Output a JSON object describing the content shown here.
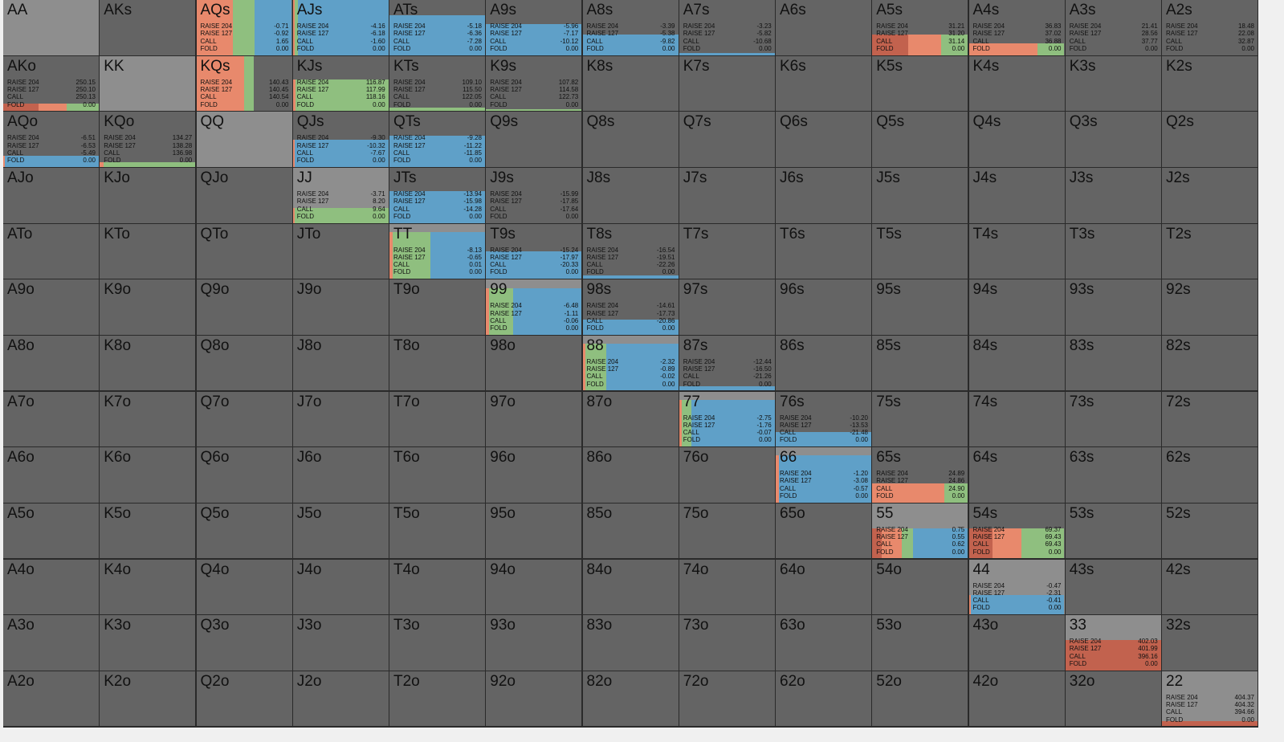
{
  "grid": {
    "labels": [
      [
        "AA",
        "AKs",
        "AQs",
        "AJs",
        "ATs",
        "A9s",
        "A8s",
        "A7s",
        "A6s",
        "A5s",
        "A4s",
        "A3s",
        "A2s"
      ],
      [
        "AKo",
        "KK",
        "KQs",
        "KJs",
        "KTs",
        "K9s",
        "K8s",
        "K7s",
        "K6s",
        "K5s",
        "K4s",
        "K3s",
        "K2s"
      ],
      [
        "AQo",
        "KQo",
        "QQ",
        "QJs",
        "QTs",
        "Q9s",
        "Q8s",
        "Q7s",
        "Q6s",
        "Q5s",
        "Q4s",
        "Q3s",
        "Q2s"
      ],
      [
        "AJo",
        "KJo",
        "QJo",
        "JJ",
        "JTs",
        "J9s",
        "J8s",
        "J7s",
        "J6s",
        "J5s",
        "J4s",
        "J3s",
        "J2s"
      ],
      [
        "ATo",
        "KTo",
        "QTo",
        "JTo",
        "TT",
        "T9s",
        "T8s",
        "T7s",
        "T6s",
        "T5s",
        "T4s",
        "T3s",
        "T2s"
      ],
      [
        "A9o",
        "K9o",
        "Q9o",
        "J9o",
        "T9o",
        "99",
        "98s",
        "97s",
        "96s",
        "95s",
        "94s",
        "93s",
        "92s"
      ],
      [
        "A8o",
        "K8o",
        "Q8o",
        "J8o",
        "T8o",
        "98o",
        "88",
        "87s",
        "86s",
        "85s",
        "84s",
        "83s",
        "82s"
      ],
      [
        "A7o",
        "K7o",
        "Q7o",
        "J7o",
        "T7o",
        "97o",
        "87o",
        "77",
        "76s",
        "75s",
        "74s",
        "73s",
        "72s"
      ],
      [
        "A6o",
        "K6o",
        "Q6o",
        "J6o",
        "T6o",
        "96o",
        "86o",
        "76o",
        "66",
        "65s",
        "64s",
        "63s",
        "62s"
      ],
      [
        "A5o",
        "K5o",
        "Q5o",
        "J5o",
        "T5o",
        "95o",
        "85o",
        "75o",
        "65o",
        "55",
        "54s",
        "53s",
        "52s"
      ],
      [
        "A4o",
        "K4o",
        "Q4o",
        "J4o",
        "T4o",
        "94o",
        "84o",
        "74o",
        "64o",
        "54o",
        "44",
        "43s",
        "42s"
      ],
      [
        "A3o",
        "K3o",
        "Q3o",
        "J3o",
        "T3o",
        "93o",
        "83o",
        "73o",
        "63o",
        "53o",
        "43o",
        "33",
        "32s"
      ],
      [
        "A2o",
        "K2o",
        "Q2o",
        "J2o",
        "T2o",
        "92o",
        "82o",
        "72o",
        "62o",
        "52o",
        "42o",
        "32o",
        "22"
      ]
    ],
    "actions": [
      "RAISE 204",
      "RAISE 127",
      "CALL",
      "FOLD"
    ],
    "colors": [
      "#c2624e",
      "#e8896c",
      "#8fbf7f",
      "#5fa0c8"
    ],
    "details": {
      "AQs": {
        "values": [
          "-0.71",
          "-0.92",
          "1.65",
          "0.00"
        ],
        "mix": [
          0,
          38,
          23,
          39
        ],
        "weight": 100
      },
      "AJs": {
        "values": [
          "-4.16",
          "-6.18",
          "-1.60",
          "0.00"
        ],
        "mix": [
          0,
          2,
          3,
          95
        ],
        "weight": 100
      },
      "ATs": {
        "values": [
          "-5.18",
          "-6.36",
          "-7.28",
          "0.00"
        ],
        "mix": [
          0,
          0,
          0,
          100
        ],
        "weight": 72
      },
      "A9s": {
        "values": [
          "-5.96",
          "-7.17",
          "-10.12",
          "0.00"
        ],
        "mix": [
          0,
          0,
          0,
          100
        ],
        "weight": 57
      },
      "A8s": {
        "values": [
          "-3.39",
          "-5.38",
          "-9.82",
          "0.00"
        ],
        "mix": [
          0,
          0,
          0,
          100
        ],
        "weight": 38
      },
      "A7s": {
        "values": [
          "-3.23",
          "-5.82",
          "-10.68",
          "0.00"
        ],
        "mix": [
          0,
          0,
          0,
          100
        ],
        "weight": 4
      },
      "A5s": {
        "values": [
          "31.21",
          "31.20",
          "31.14",
          "0.00"
        ],
        "mix": [
          38,
          34,
          28,
          0
        ],
        "weight": 38
      },
      "A4s": {
        "values": [
          "36.83",
          "37.02",
          "36.88",
          "0.00"
        ],
        "mix": [
          0,
          72,
          28,
          0
        ],
        "weight": 22
      },
      "A3s": {
        "values": [
          "21.41",
          "28.56",
          "37.77",
          "0.00"
        ]
      },
      "A2s": {
        "values": [
          "18.48",
          "22.08",
          "32.87",
          "0.00"
        ]
      },
      "AKo": {
        "values": [
          "250.15",
          "250.10",
          "250.13",
          "0.00"
        ],
        "mix": [
          37,
          29,
          34,
          0
        ],
        "weight": 14
      },
      "KQs": {
        "values": [
          "140.43",
          "140.45",
          "140.54",
          "0.00"
        ],
        "mix": [
          0,
          50,
          10,
          0
        ],
        "weight": 100
      },
      "KJs": {
        "values": [
          "116.87",
          "117.99",
          "118.16",
          "0.00"
        ],
        "mix": [
          0,
          3,
          97,
          0
        ],
        "weight": 57
      },
      "KTs": {
        "values": [
          "109.10",
          "115.50",
          "122.05",
          "0.00"
        ],
        "mix": [
          0,
          0,
          100,
          0
        ],
        "weight": 6
      },
      "K9s": {
        "values": [
          "107.82",
          "114.58",
          "122.73",
          "0.00"
        ],
        "mix": [
          0,
          0,
          100,
          0
        ],
        "weight": 3
      },
      "AQo": {
        "values": [
          "-6.51",
          "-6.53",
          "-5.49",
          "0.00"
        ],
        "mix": [
          0,
          2,
          0,
          98
        ],
        "weight": 20
      },
      "KQo": {
        "values": [
          "134.27",
          "138.28",
          "136.98",
          "0.00"
        ],
        "mix": [
          0,
          4,
          96,
          0
        ],
        "weight": 8
      },
      "QJs": {
        "values": [
          "-9.30",
          "-10.32",
          "-7.67",
          "0.00"
        ],
        "mix": [
          0,
          2,
          0,
          98
        ],
        "weight": 50
      },
      "QTs": {
        "values": [
          "-9.28",
          "-11.22",
          "-11.85",
          "0.00"
        ],
        "mix": [
          0,
          0,
          0,
          100
        ],
        "weight": 57
      },
      "JJ": {
        "values": [
          "-3.71",
          "8.20",
          "9.64",
          "0.00"
        ],
        "mix": [
          0,
          2,
          98,
          0
        ],
        "weight": 27
      },
      "JTs": {
        "values": [
          "-13.94",
          "-15.98",
          "-14.28",
          "0.00"
        ],
        "mix": [
          0,
          0,
          0,
          100
        ],
        "weight": 57
      },
      "J9s": {
        "values": [
          "-15.99",
          "-17.85",
          "-17.64",
          "0.00"
        ]
      },
      "TT": {
        "values": [
          "-8.13",
          "-0.65",
          "0.01",
          "0.00"
        ],
        "mix": [
          0,
          3,
          40,
          57
        ],
        "weight": 85
      },
      "T9s": {
        "values": [
          "-15.24",
          "-17.97",
          "-20.33",
          "0.00"
        ],
        "mix": [
          0,
          0,
          0,
          100
        ],
        "weight": 50
      },
      "T8s": {
        "values": [
          "-16.54",
          "-19.51",
          "-22.26",
          "0.00"
        ],
        "mix": [
          0,
          0,
          0,
          100
        ],
        "weight": 6
      },
      "99": {
        "values": [
          "-6.48",
          "-1.11",
          "-0.06",
          "0.00"
        ],
        "mix": [
          0,
          3,
          25,
          72
        ],
        "weight": 85
      },
      "98s": {
        "values": [
          "-14.61",
          "-17.73",
          "-20.86",
          "0.00"
        ],
        "mix": [
          0,
          0,
          0,
          100
        ],
        "weight": 27
      },
      "88": {
        "values": [
          "-2.32",
          "-0.89",
          "-0.02",
          "0.00"
        ],
        "mix": [
          0,
          3,
          22,
          75
        ],
        "weight": 85
      },
      "87s": {
        "values": [
          "-12.44",
          "-16.50",
          "-21.26",
          "0.00"
        ],
        "mix": [
          0,
          0,
          0,
          100
        ],
        "weight": 8
      },
      "77": {
        "values": [
          "-2.75",
          "-1.76",
          "-0.07",
          "0.00"
        ],
        "mix": [
          0,
          3,
          10,
          87
        ],
        "weight": 85
      },
      "76s": {
        "values": [
          "-10.20",
          "-13.53",
          "-21.48",
          "0.00"
        ],
        "mix": [
          0,
          0,
          0,
          100
        ],
        "weight": 27
      },
      "66": {
        "values": [
          "-1.20",
          "-3.08",
          "-0.57",
          "0.00"
        ],
        "mix": [
          0,
          3,
          0,
          97
        ],
        "weight": 85
      },
      "65s": {
        "values": [
          "24.89",
          "24.86",
          "24.90",
          "0.00"
        ],
        "mix": [
          0,
          75,
          25,
          0
        ],
        "weight": 35
      },
      "55": {
        "values": [
          "0.75",
          "0.55",
          "0.62",
          "0.00"
        ],
        "mix": [
          10,
          21,
          12,
          57
        ],
        "weight": 55
      },
      "54s": {
        "values": [
          "69.37",
          "69.43",
          "69.43",
          "0.00"
        ],
        "mix": [
          25,
          30,
          45,
          0
        ],
        "weight": 55
      },
      "44": {
        "values": [
          "-0.47",
          "-2.31",
          "-0.41",
          "0.00"
        ],
        "mix": [
          0,
          2,
          0,
          98
        ],
        "weight": 35
      },
      "33": {
        "values": [
          "402.03",
          "401.99",
          "396.16",
          "0.00"
        ],
        "mix": [
          100,
          0,
          0,
          0
        ],
        "weight": 55
      },
      "22": {
        "values": [
          "404.37",
          "404.32",
          "394.66",
          "0.00"
        ],
        "mix": [
          100,
          0,
          0,
          0
        ],
        "weight": 10
      }
    }
  }
}
